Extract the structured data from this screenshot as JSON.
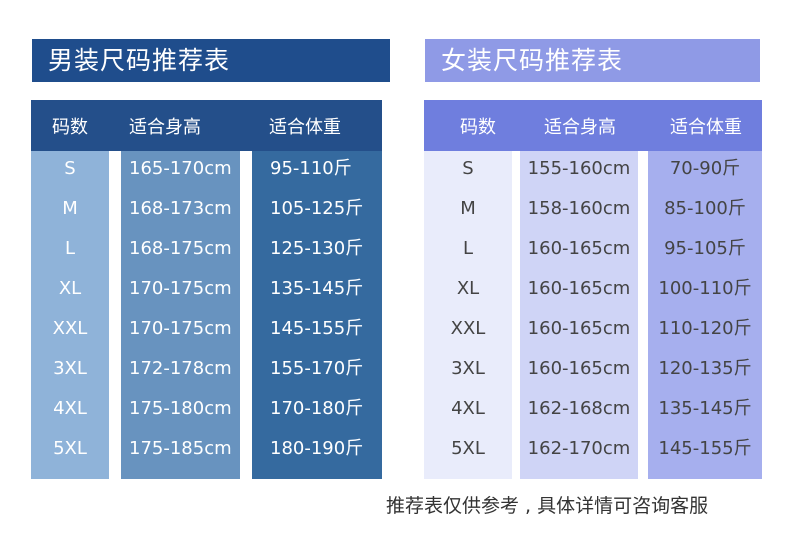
{
  "men": {
    "title": "男装尺码推荐表",
    "headers": [
      "码数",
      "适合身高",
      "适合体重"
    ],
    "rows": [
      [
        "S",
        "165-170cm",
        "95-110斤"
      ],
      [
        "M",
        "168-173cm",
        "105-125斤"
      ],
      [
        "L",
        "168-175cm",
        "125-130斤"
      ],
      [
        "XL",
        "170-175cm",
        "135-145斤"
      ],
      [
        "XXL",
        "170-175cm",
        "145-155斤"
      ],
      [
        "3XL",
        "172-178cm",
        "155-170斤"
      ],
      [
        "4XL",
        "175-180cm",
        "170-180斤"
      ],
      [
        "5XL",
        "175-185cm",
        "180-190斤"
      ]
    ],
    "colors": {
      "banner": "#1f4d8c",
      "header": "#244f8a",
      "col1": "#8fb3d9",
      "col2": "#6893bf",
      "col3": "#356a9f"
    }
  },
  "women": {
    "title": "女装尺码推荐表",
    "headers": [
      "码数",
      "适合身高",
      "适合体重"
    ],
    "rows": [
      [
        "S",
        "155-160cm",
        "70-90斤"
      ],
      [
        "M",
        "158-160cm",
        "85-100斤"
      ],
      [
        "L",
        "160-165cm",
        "95-105斤"
      ],
      [
        "XL",
        "160-165cm",
        "100-110斤"
      ],
      [
        "XXL",
        "160-165cm",
        "110-120斤"
      ],
      [
        "3XL",
        "160-165cm",
        "120-135斤"
      ],
      [
        "4XL",
        "162-168cm",
        "135-145斤"
      ],
      [
        "5XL",
        "162-170cm",
        "145-155斤"
      ]
    ],
    "colors": {
      "banner": "#8f9ae6",
      "header": "#6f7ede",
      "col1": "#e9ecfb",
      "col2": "#cfd4f6",
      "col3": "#a6afee"
    }
  },
  "footer_note": "推荐表仅供参考 , 具体详情可咨询客服"
}
